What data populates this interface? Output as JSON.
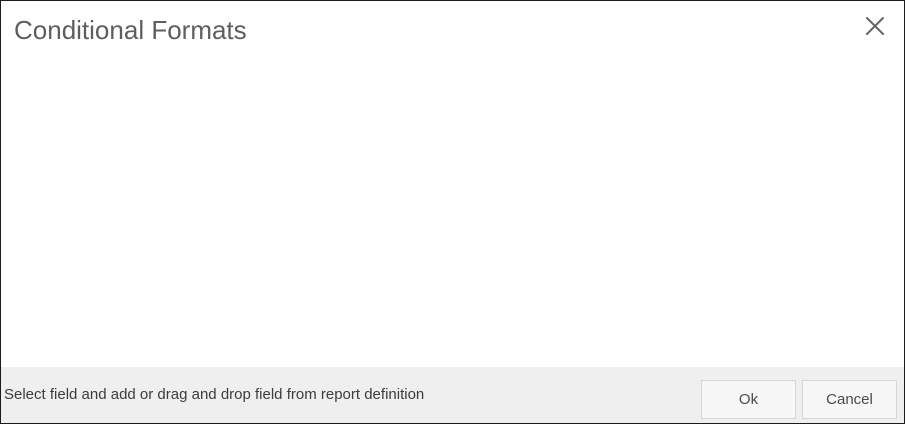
{
  "dialog": {
    "title": "Conditional Formats",
    "close_icon": "close-icon"
  },
  "footer": {
    "hint": "Select field and add or drag and drop field from report definition",
    "ok_label": "Ok",
    "cancel_label": "Cancel"
  },
  "colors": {
    "title_text": "#5e5e5e",
    "footer_background": "#efefef",
    "border": "#1c1c1c"
  }
}
